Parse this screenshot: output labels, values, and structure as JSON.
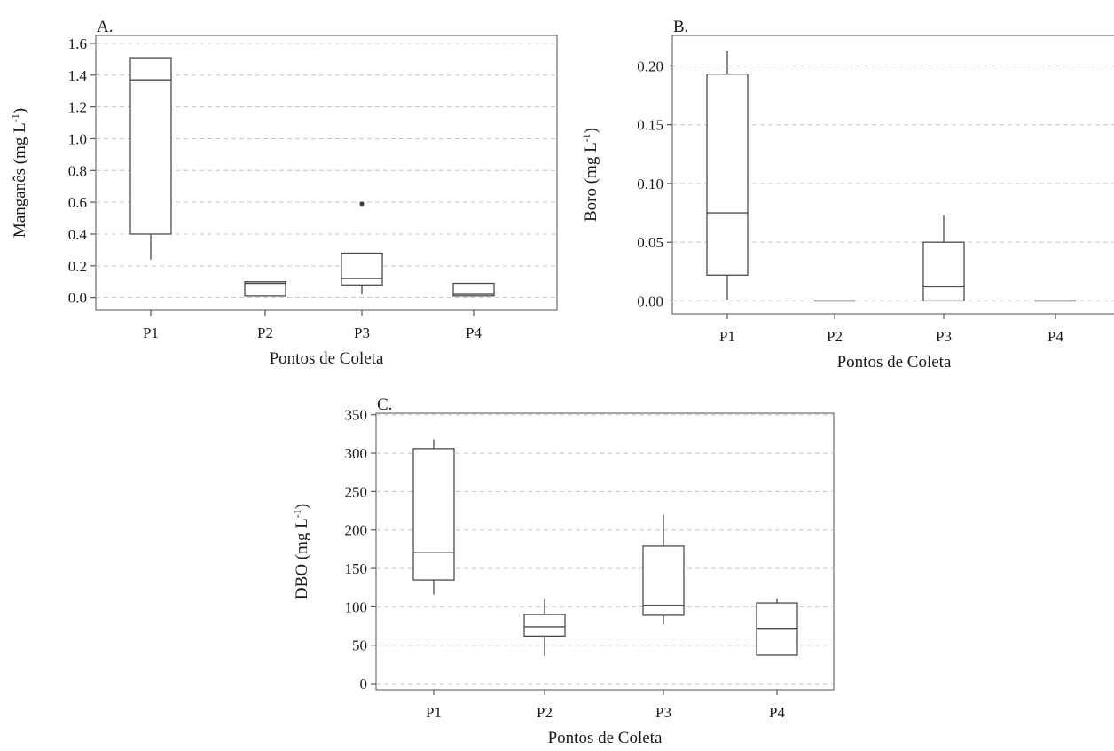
{
  "chart_data": [
    {
      "type": "box",
      "panel_label": "A.",
      "xlabel": "Pontos de Coleta",
      "ylabel_main": "Manganês (mg L",
      "ylabel_sup": "-1",
      "ylabel_close": ")",
      "ylim": [
        -0.08,
        1.65
      ],
      "yticks": [
        0.0,
        0.2,
        0.4,
        0.6,
        0.8,
        1.0,
        1.2,
        1.4,
        1.6
      ],
      "ytick_labels": [
        "0.0",
        "0.2",
        "0.4",
        "0.6",
        "0.8",
        "1.0",
        "1.2",
        "1.4",
        "1.6"
      ],
      "grid": true,
      "categories": [
        "P1",
        "P2",
        "P3",
        "P4"
      ],
      "boxes": [
        {
          "category": "P1",
          "whisker_low": 0.24,
          "q1": 0.4,
          "median": 1.37,
          "q3": 1.51,
          "whisker_high": 1.51,
          "outliers": []
        },
        {
          "category": "P2",
          "whisker_low": 0.01,
          "q1": 0.01,
          "median": 0.09,
          "q3": 0.1,
          "whisker_high": 0.1,
          "outliers": []
        },
        {
          "category": "P3",
          "whisker_low": 0.02,
          "q1": 0.08,
          "median": 0.12,
          "q3": 0.28,
          "whisker_high": 0.28,
          "outliers": [
            0.59
          ]
        },
        {
          "category": "P4",
          "whisker_low": 0.01,
          "q1": 0.01,
          "median": 0.02,
          "q3": 0.09,
          "whisker_high": 0.09,
          "outliers": []
        }
      ]
    },
    {
      "type": "box",
      "panel_label": "B.",
      "xlabel": "Pontos de Coleta",
      "ylabel_main": "Boro (mg L",
      "ylabel_sup": "-1",
      "ylabel_close": ")",
      "ylim": [
        -0.011,
        0.226
      ],
      "yticks": [
        0.0,
        0.05,
        0.1,
        0.15,
        0.2
      ],
      "ytick_labels": [
        "0.00",
        "0.05",
        "0.10",
        "0.15",
        "0.20"
      ],
      "grid": true,
      "categories": [
        "P1",
        "P2",
        "P3",
        "P4"
      ],
      "boxes": [
        {
          "category": "P1",
          "whisker_low": 0.001,
          "q1": 0.022,
          "median": 0.075,
          "q3": 0.193,
          "whisker_high": 0.213,
          "outliers": []
        },
        {
          "category": "P2",
          "whisker_low": 0.0,
          "q1": 0.0,
          "median": 0.0,
          "q3": 0.0,
          "whisker_high": 0.0,
          "outliers": []
        },
        {
          "category": "P3",
          "whisker_low": 0.0,
          "q1": 0.0,
          "median": 0.012,
          "q3": 0.05,
          "whisker_high": 0.073,
          "outliers": []
        },
        {
          "category": "P4",
          "whisker_low": 0.0,
          "q1": 0.0,
          "median": 0.0,
          "q3": 0.0,
          "whisker_high": 0.0,
          "outliers": []
        }
      ]
    },
    {
      "type": "box",
      "panel_label": "C.",
      "xlabel": "Pontos de Coleta",
      "ylabel_main": "DBO (mg L",
      "ylabel_sup": "-1",
      "ylabel_close": ")",
      "ylim": [
        -8,
        352
      ],
      "yticks": [
        0,
        50,
        100,
        150,
        200,
        250,
        300,
        350
      ],
      "ytick_labels": [
        "0",
        "50",
        "100",
        "150",
        "200",
        "250",
        "300",
        "350"
      ],
      "grid": true,
      "categories": [
        "P1",
        "P2",
        "P3",
        "P4"
      ],
      "boxes": [
        {
          "category": "P1",
          "whisker_low": 116,
          "q1": 135,
          "median": 171,
          "q3": 306,
          "whisker_high": 318,
          "outliers": []
        },
        {
          "category": "P2",
          "whisker_low": 36,
          "q1": 62,
          "median": 74,
          "q3": 90,
          "whisker_high": 110,
          "outliers": []
        },
        {
          "category": "P3",
          "whisker_low": 77,
          "q1": 89,
          "median": 102,
          "q3": 179,
          "whisker_high": 220,
          "outliers": []
        },
        {
          "category": "P4",
          "whisker_low": 37,
          "q1": 37,
          "median": 72,
          "q3": 105,
          "whisker_high": 110,
          "outliers": []
        }
      ]
    }
  ]
}
